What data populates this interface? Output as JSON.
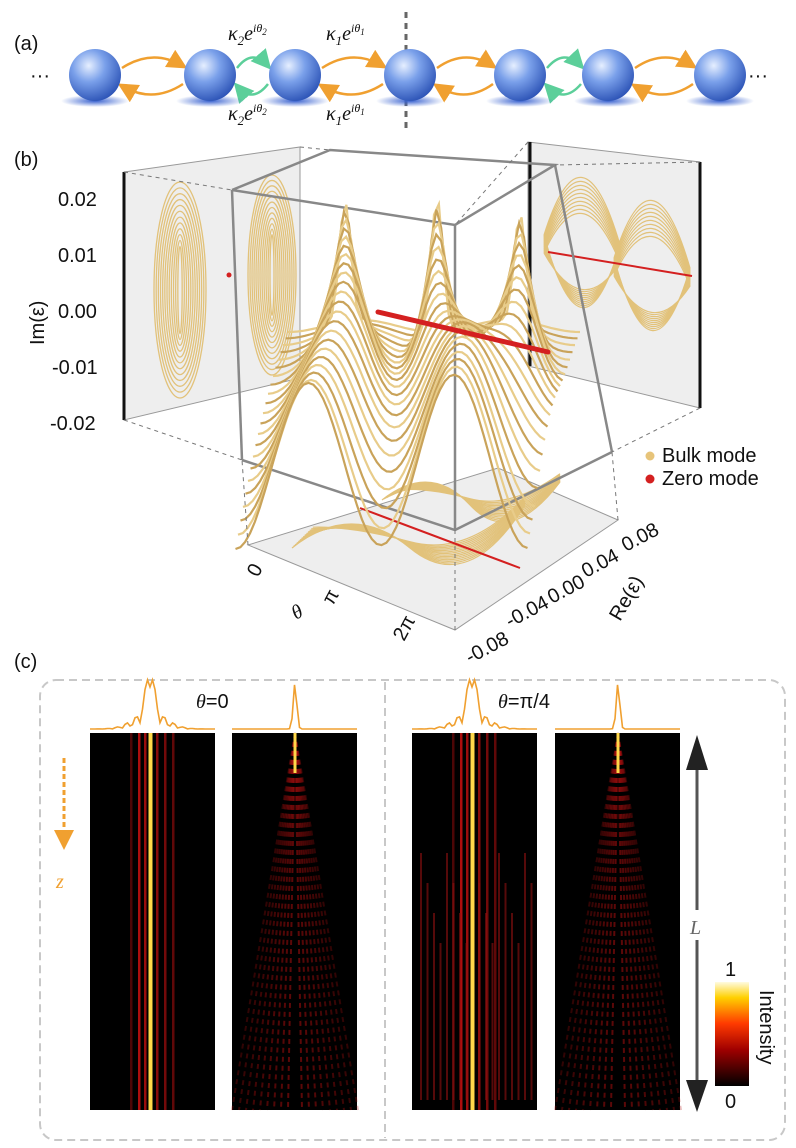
{
  "panel_a": {
    "label": "(a)",
    "ellipsis_left": "···",
    "ellipsis_right": "···",
    "kappa": "κ",
    "exponential": "e",
    "phase": "iθ",
    "coupling_indices": [
      "2",
      "1",
      "2",
      "1"
    ]
  },
  "panel_b": {
    "label": "(b)",
    "y_axis_label": "Im(ε)",
    "y_ticks": [
      "0.02",
      "0.01",
      "0.00",
      "-0.01",
      "-0.02"
    ],
    "x_axis_label": "θ",
    "x_ticks": [
      "0",
      "π",
      "2π"
    ],
    "z_axis_label": "Re(ε)",
    "z_ticks": [
      "0.08",
      "0.04",
      "0.00",
      "-0.04",
      "-0.08"
    ],
    "legend": [
      "Bulk mode",
      "Zero mode"
    ]
  },
  "panel_c": {
    "label": "(c)",
    "columns": [
      {
        "symbol": "θ",
        "value": "=0"
      },
      {
        "symbol": "θ",
        "value": "=π/4"
      }
    ],
    "propagation_label": "z",
    "length_label": "L",
    "colorbar": {
      "max": "1",
      "min": "0",
      "title": "Intensity"
    }
  }
}
